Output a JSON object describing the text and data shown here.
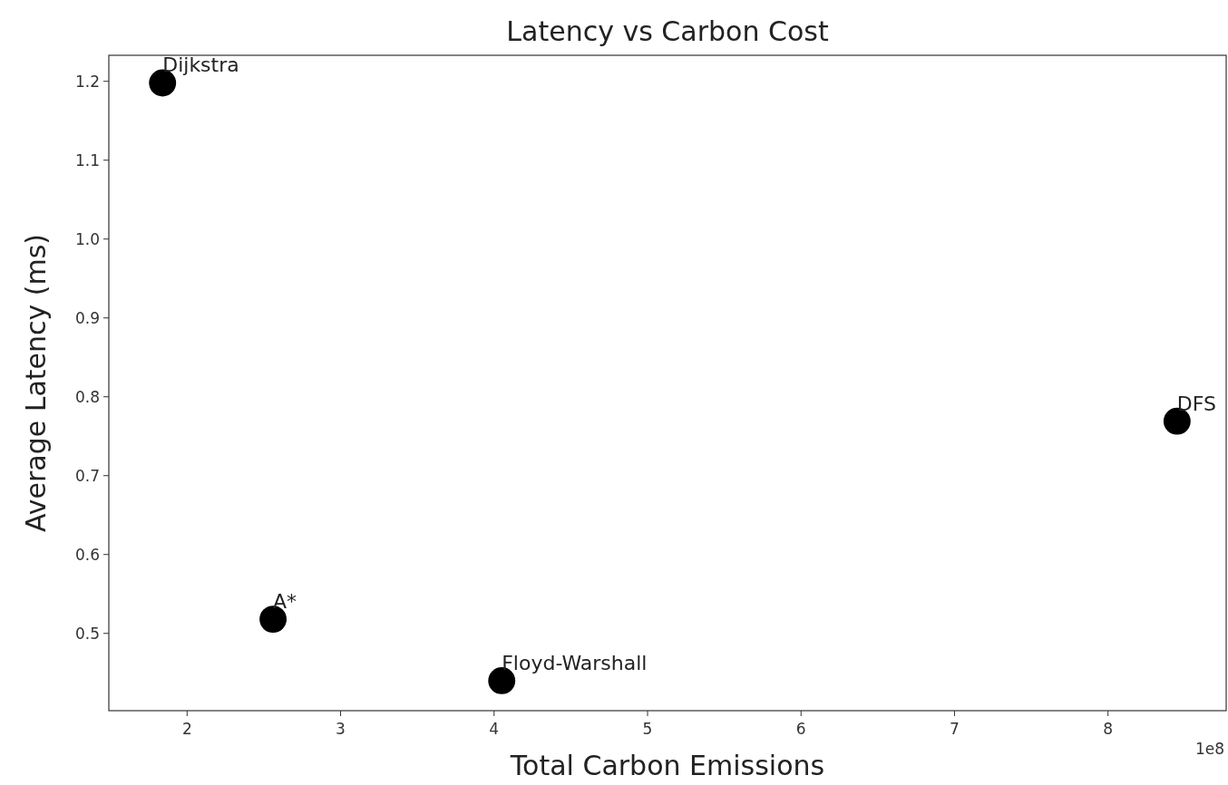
{
  "chart_data": {
    "type": "scatter",
    "title": "Latency vs Carbon Cost",
    "xlabel": "Total Carbon Emissions",
    "ylabel": "Average Latency (ms)",
    "x": [
      1.84,
      2.56,
      4.05,
      8.45
    ],
    "values": [
      1.198,
      0.518,
      0.44,
      0.769
    ],
    "color": "#000000",
    "marker": "circle",
    "grid": false,
    "xlim": [
      1.49,
      8.77
    ],
    "xticks": [
      2,
      3,
      4,
      5,
      6,
      7,
      8
    ],
    "ylim": [
      0.402,
      1.233
    ],
    "yticks": [
      {
        "value": 0.5,
        "label": "0.5"
      },
      {
        "value": 0.6,
        "label": "0.6"
      },
      {
        "value": 0.7,
        "label": "0.7"
      },
      {
        "value": 0.8,
        "label": "0.8"
      },
      {
        "value": 0.9,
        "label": "0.9"
      },
      {
        "value": 1.0,
        "label": "1.0"
      },
      {
        "value": 1.1,
        "label": "1.1"
      },
      {
        "value": 1.2,
        "label": "1.2"
      }
    ],
    "annotations": [
      {
        "text": "Dijkstra",
        "x": 1.84,
        "y": 1.198
      },
      {
        "text": "A*",
        "x": 2.56,
        "y": 0.518
      },
      {
        "text": "Floyd-Warshall",
        "x": 4.05,
        "y": 0.44
      },
      {
        "text": "DFS",
        "x": 8.45,
        "y": 0.769
      },
      "1e8"
    ]
  }
}
